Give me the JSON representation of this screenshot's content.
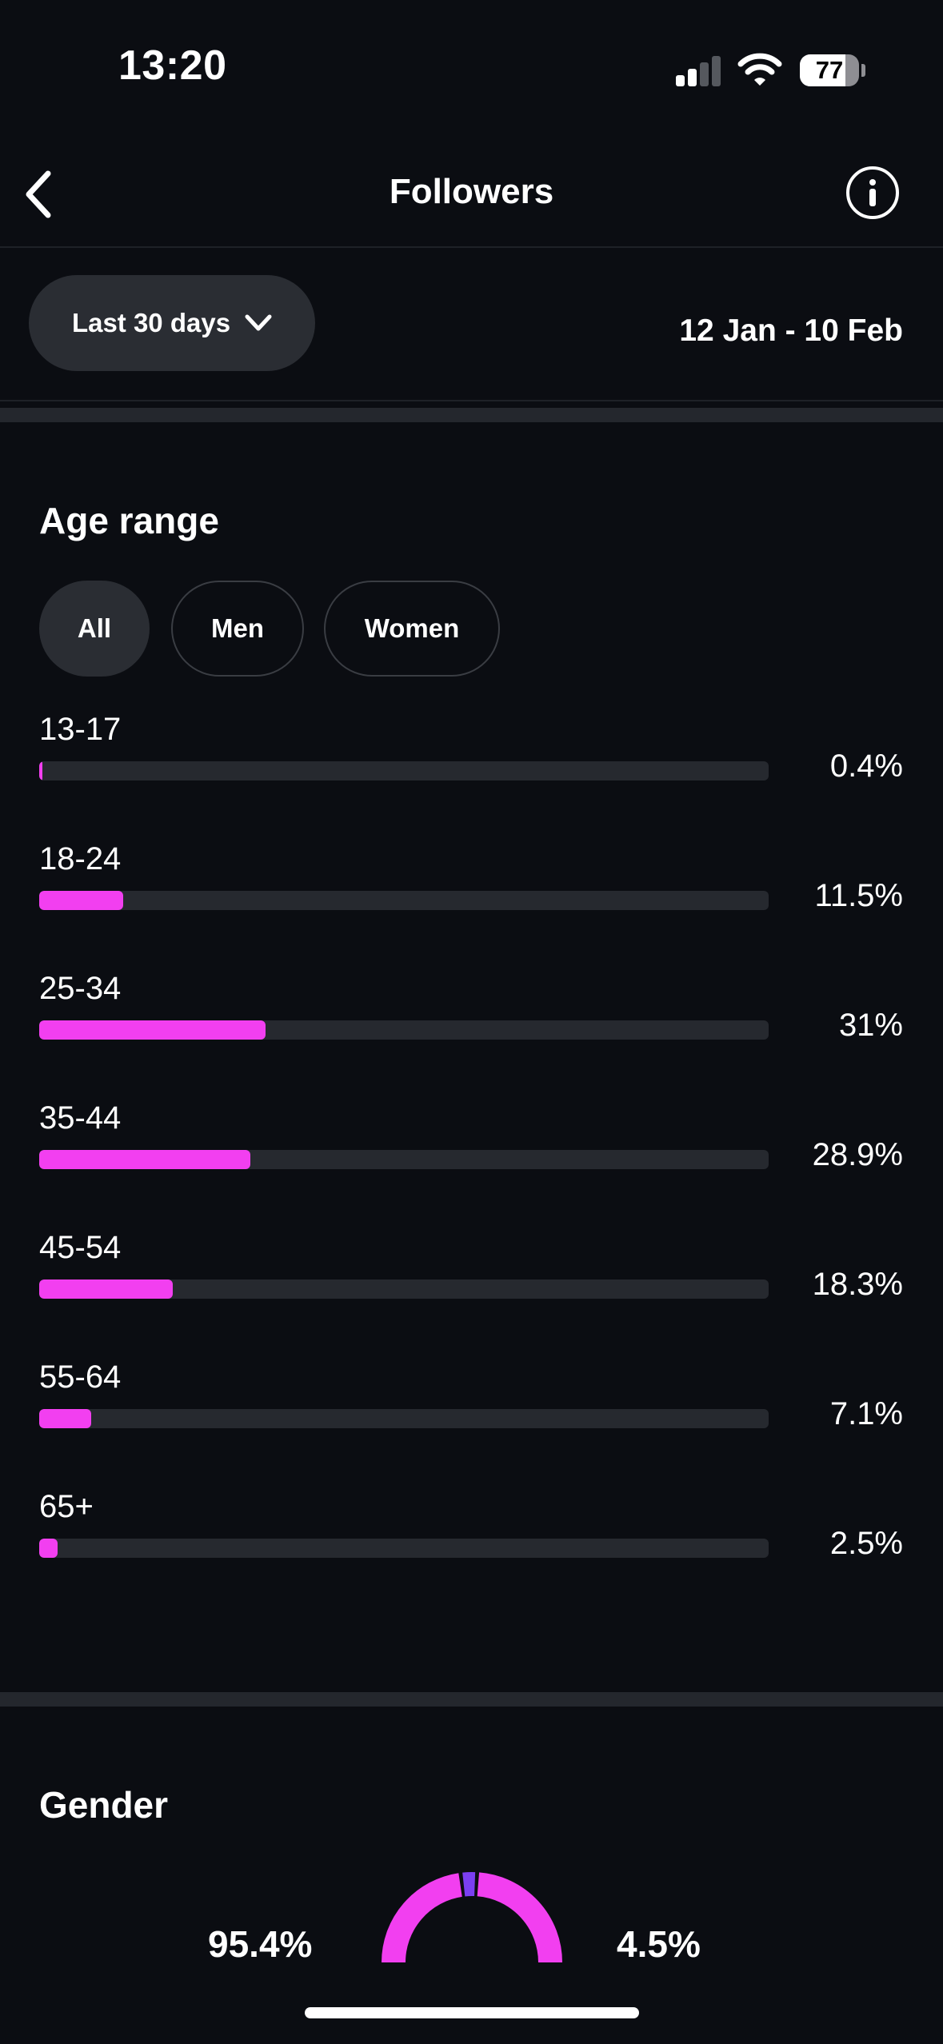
{
  "status_bar": {
    "time": "13:20",
    "battery": "77",
    "battery_level": 0.77
  },
  "nav": {
    "title": "Followers",
    "back_icon": "chevron-left-icon",
    "info_icon": "info-icon"
  },
  "filter": {
    "range_label": "Last 30 days",
    "dropdown_icon": "chevron-down-icon",
    "date_range": "12 Jan - 10 Feb"
  },
  "age_section": {
    "title": "Age range",
    "segments": [
      {
        "label": "All",
        "active": true
      },
      {
        "label": "Men",
        "active": false
      },
      {
        "label": "Women",
        "active": false
      }
    ],
    "rows": [
      {
        "label": "13-17",
        "percent": "0.4%",
        "value": 0.4
      },
      {
        "label": "18-24",
        "percent": "11.5%",
        "value": 11.5
      },
      {
        "label": "25-34",
        "percent": "31%",
        "value": 31
      },
      {
        "label": "35-44",
        "percent": "28.9%",
        "value": 28.9
      },
      {
        "label": "45-54",
        "percent": "18.3%",
        "value": 18.3
      },
      {
        "label": "55-64",
        "percent": "7.1%",
        "value": 7.1
      },
      {
        "label": "65+",
        "percent": "2.5%",
        "value": 2.5
      }
    ],
    "bar_color": "#f23ff0"
  },
  "gender_section": {
    "title": "Gender",
    "left_percent": "95.4%",
    "right_percent": "4.5%",
    "slices": [
      {
        "value": 95.4,
        "color": "#f23ff0"
      },
      {
        "value": 4.5,
        "color": "#7b3ff2"
      }
    ]
  }
}
